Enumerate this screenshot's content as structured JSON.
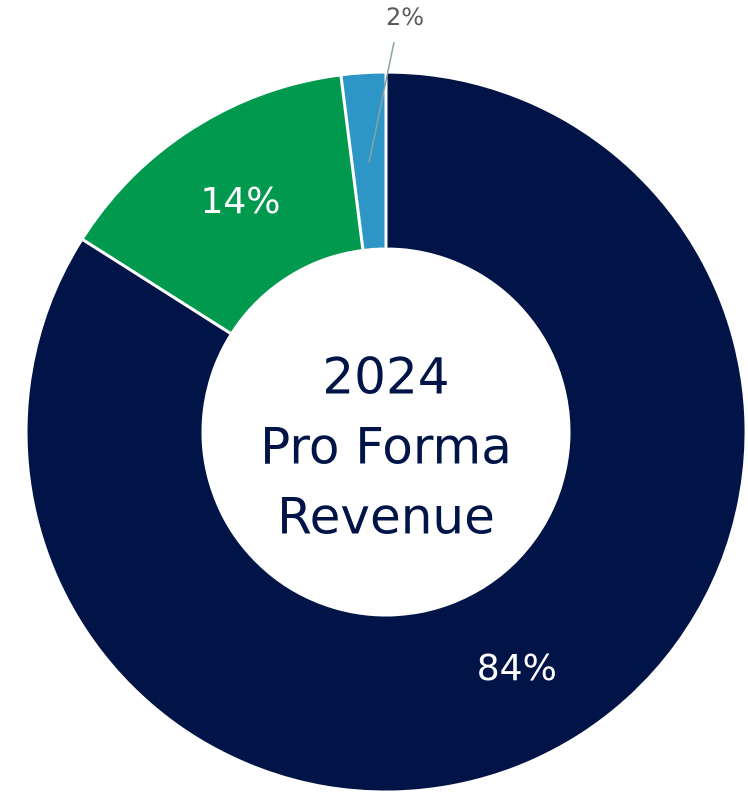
{
  "chart_data": {
    "type": "donut",
    "title_lines": [
      "2024",
      "Pro Forma",
      "Revenue"
    ],
    "categories": [
      null,
      null,
      null
    ],
    "values": [
      84,
      14,
      2
    ],
    "value_labels": [
      "84%",
      "14%",
      "2%"
    ],
    "colors": [
      "#001447",
      "#00994d",
      "#2e96c6"
    ]
  }
}
